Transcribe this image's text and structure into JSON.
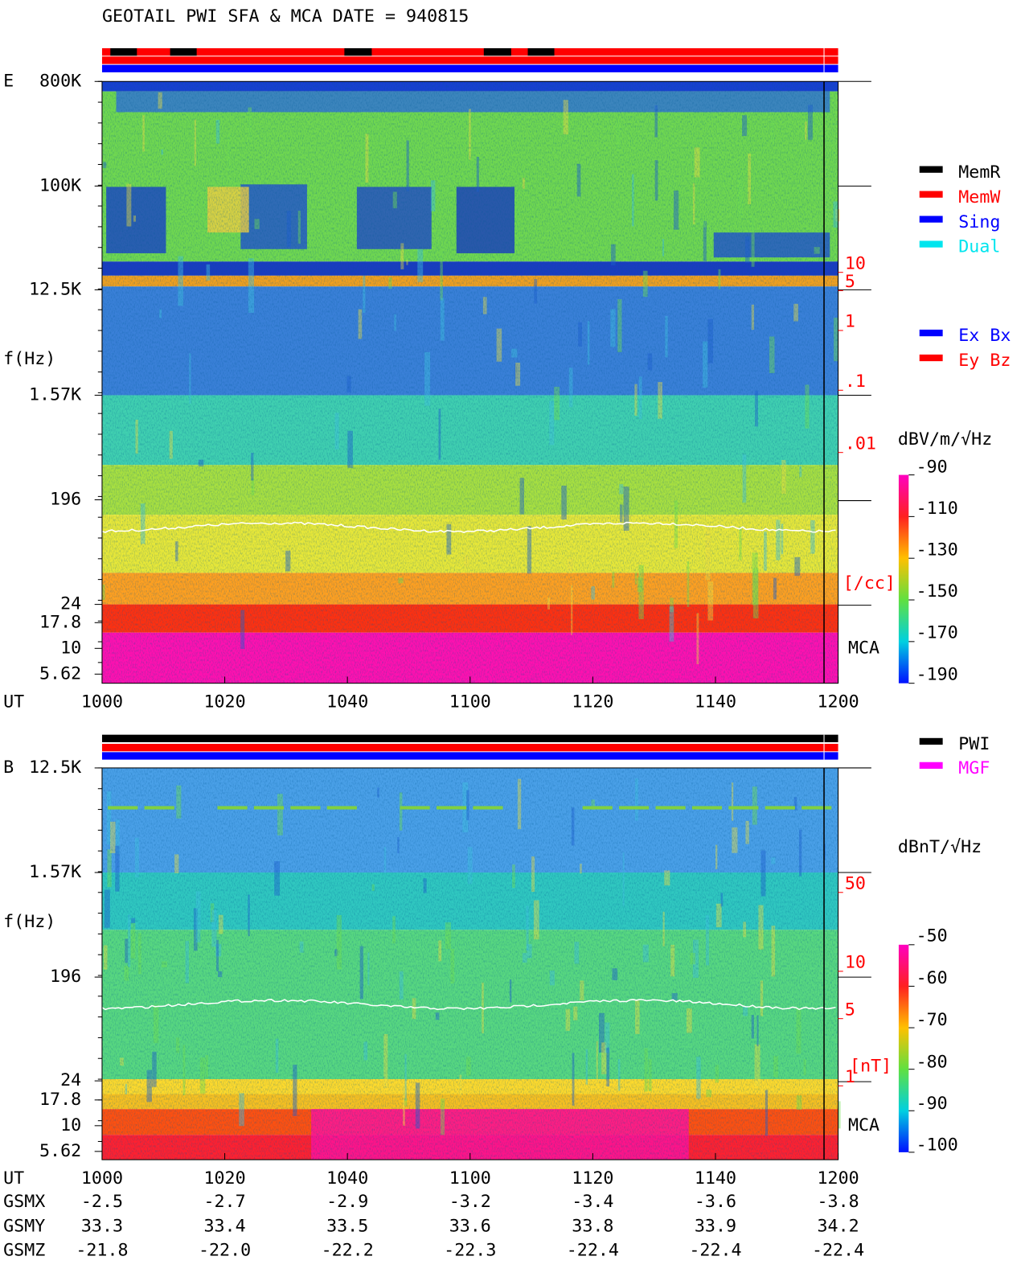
{
  "title": "GEOTAIL  PWI SFA & MCA   DATE = 940815",
  "panels": [
    {
      "label": "E",
      "y_label": "f(Hz)",
      "freq_ticks": [
        "800K",
        "100K",
        "12.5K",
        "1.57K",
        "196",
        "24",
        "17.8",
        "10",
        "5.62"
      ],
      "x_label": "UT",
      "time_ticks": [
        "1000",
        "1020",
        "1040",
        "1100",
        "1120",
        "1140",
        "1200"
      ],
      "density_ticks": [
        "10",
        "5",
        "1",
        ".1",
        ".01"
      ],
      "density_unit": "[/cc]",
      "mca_label": "MCA",
      "colorbar_unit": "dBV/m/√Hz",
      "colorbar_ticks": [
        "-90",
        "-110",
        "-130",
        "-150",
        "-170",
        "-190"
      ]
    },
    {
      "label": "B",
      "y_label": "f(Hz)",
      "freq_ticks": [
        "12.5K",
        "1.57K",
        "196",
        "24",
        "17.8",
        "10",
        "5.62"
      ],
      "x_label": "UT",
      "time_ticks": [
        "1000",
        "1020",
        "1040",
        "1100",
        "1120",
        "1140",
        "1200"
      ],
      "density_ticks": [
        "50",
        "10",
        "5",
        "1"
      ],
      "density_unit": "[nT]",
      "mca_label": "MCA",
      "colorbar_unit": "dBnT/√Hz",
      "colorbar_ticks": [
        "-50",
        "-60",
        "-70",
        "-80",
        "-90",
        "-100"
      ]
    }
  ],
  "legend_memory": [
    {
      "name": "MemR",
      "color": "#000000"
    },
    {
      "name": "MemW",
      "color": "#ff0000"
    },
    {
      "name": "Sing",
      "color": "#0000ff"
    },
    {
      "name": "Dual",
      "color": "#00e5ee"
    }
  ],
  "legend_antenna": [
    {
      "name": "Ex Bx",
      "color": "#0000ff"
    },
    {
      "name": "Ey Bz",
      "color": "#ff0000"
    }
  ],
  "legend_mode": [
    {
      "name": "PWI",
      "color": "#000000"
    },
    {
      "name": "MGF",
      "color": "#ff00ff"
    }
  ],
  "orbit": [
    {
      "name": "GSMX",
      "values": [
        "-2.5",
        "-2.7",
        "-2.9",
        "-3.2",
        "-3.4",
        "-3.6",
        "-3.8"
      ]
    },
    {
      "name": "GSMY",
      "values": [
        "33.3",
        "33.4",
        "33.5",
        "33.6",
        "33.8",
        "33.9",
        "34.2"
      ]
    },
    {
      "name": "GSMZ",
      "values": [
        "-21.8",
        "-22.0",
        "-22.2",
        "-22.3",
        "-22.4",
        "-22.4",
        "-22.4"
      ]
    }
  ]
}
